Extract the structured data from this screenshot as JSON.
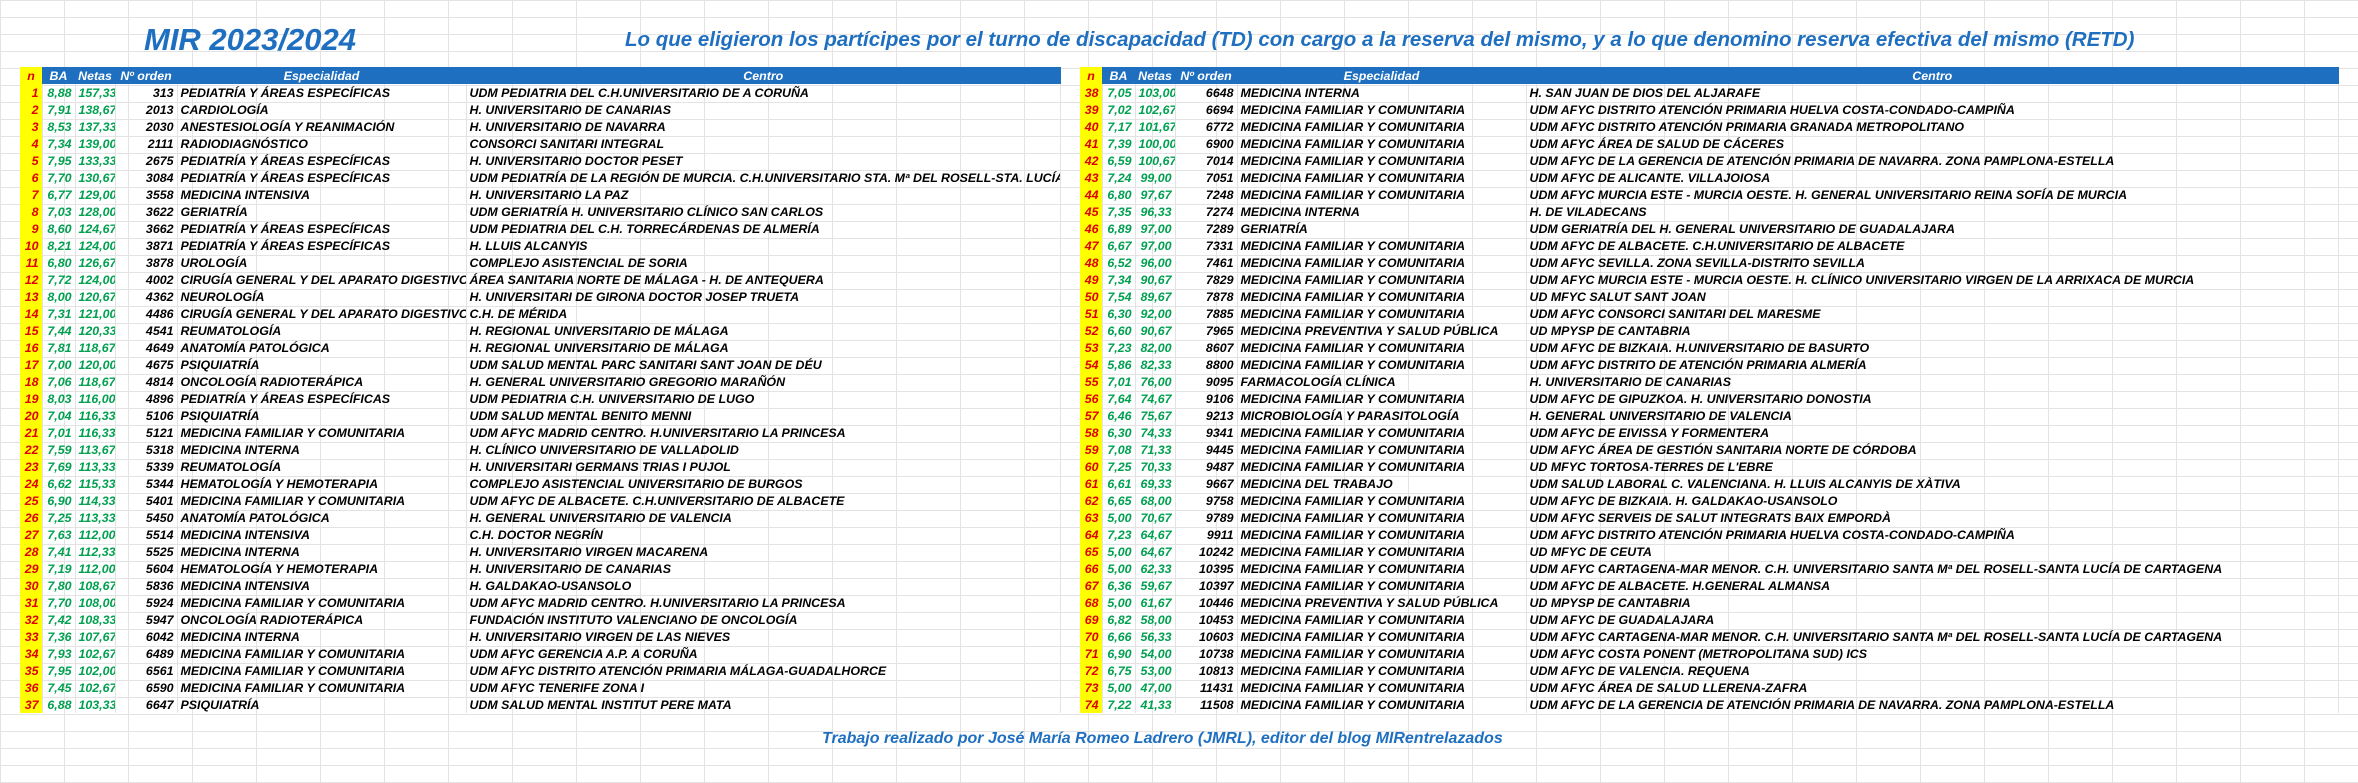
{
  "title": "MIR 2023/2024",
  "subtitle": "Lo que eligieron los partícipes por el turno de discapacidad (TD) con cargo a la reserva del mismo, y a lo que denomino reserva efectiva del mismo (RETD)",
  "footer": "Trabajo realizado por José María Romeo Ladrero (JMRL), editor del blog MIRentrelazados",
  "headers": {
    "n": "n",
    "ba": "BA",
    "netas": "Netas",
    "orden": "Nº orden",
    "especialidad": "Especialidad",
    "centro": "Centro"
  },
  "colors": {
    "header_bg": "#1f6fc0",
    "index_bg": "#ffff00",
    "index_text": "#e00000",
    "score_text": "#00a050",
    "title_text": "#1f6fc0"
  },
  "left_rows": [
    [
      "1",
      "8,88",
      "157,33",
      "313",
      "PEDIATRÍA Y ÁREAS ESPECÍFICAS",
      "UDM PEDIATRIA DEL C.H.UNIVERSITARIO DE A CORUÑA"
    ],
    [
      "2",
      "7,91",
      "138,67",
      "2013",
      "CARDIOLOGÍA",
      "H. UNIVERSITARIO DE CANARIAS"
    ],
    [
      "3",
      "8,53",
      "137,33",
      "2030",
      "ANESTESIOLOGÍA Y REANIMACIÓN",
      "H. UNIVERSITARIO DE NAVARRA"
    ],
    [
      "4",
      "7,34",
      "139,00",
      "2111",
      "RADIODIAGNÓSTICO",
      "CONSORCI SANITARI INTEGRAL"
    ],
    [
      "5",
      "7,95",
      "133,33",
      "2675",
      "PEDIATRÍA Y ÁREAS ESPECÍFICAS",
      "H. UNIVERSITARIO DOCTOR PESET"
    ],
    [
      "6",
      "7,70",
      "130,67",
      "3084",
      "PEDIATRÍA Y ÁREAS ESPECÍFICAS",
      "UDM PEDIATRÍA DE LA REGIÓN DE MURCIA. C.H.UNIVERSITARIO STA. Mª DEL ROSELL-STA. LUCÍA"
    ],
    [
      "7",
      "6,77",
      "129,00",
      "3558",
      "MEDICINA INTENSIVA",
      "H. UNIVERSITARIO LA PAZ"
    ],
    [
      "8",
      "7,03",
      "128,00",
      "3622",
      "GERIATRÍA",
      "UDM GERIATRÍA H. UNIVERSITARIO CLÍNICO SAN CARLOS"
    ],
    [
      "9",
      "8,60",
      "124,67",
      "3662",
      "PEDIATRÍA Y ÁREAS ESPECÍFICAS",
      "UDM PEDIATRIA DEL C.H. TORRECÁRDENAS DE ALMERÍA"
    ],
    [
      "10",
      "8,21",
      "124,00",
      "3871",
      "PEDIATRÍA Y ÁREAS ESPECÍFICAS",
      "H. LLUIS ALCANYIS"
    ],
    [
      "11",
      "6,80",
      "126,67",
      "3878",
      "UROLOGÍA",
      "COMPLEJO ASISTENCIAL DE SORIA"
    ],
    [
      "12",
      "7,72",
      "124,00",
      "4002",
      "CIRUGÍA GENERAL Y DEL APARATO DIGESTIVO",
      "ÁREA SANITARIA NORTE DE MÁLAGA - H. DE ANTEQUERA"
    ],
    [
      "13",
      "8,00",
      "120,67",
      "4362",
      "NEUROLOGÍA",
      "H. UNIVERSITARI DE GIRONA DOCTOR JOSEP TRUETA"
    ],
    [
      "14",
      "7,31",
      "121,00",
      "4486",
      "CIRUGÍA GENERAL Y DEL APARATO DIGESTIVO",
      "C.H. DE MÉRIDA"
    ],
    [
      "15",
      "7,44",
      "120,33",
      "4541",
      "REUMATOLOGÍA",
      "H. REGIONAL UNIVERSITARIO DE MÁLAGA"
    ],
    [
      "16",
      "7,81",
      "118,67",
      "4649",
      "ANATOMÍA PATOLÓGICA",
      "H. REGIONAL UNIVERSITARIO DE MÁLAGA"
    ],
    [
      "17",
      "7,00",
      "120,00",
      "4675",
      "PSIQUIATRÍA",
      "UDM SALUD MENTAL PARC SANITARI SANT JOAN DE DÉU"
    ],
    [
      "18",
      "7,06",
      "118,67",
      "4814",
      "ONCOLOGÍA RADIOTERÁPICA",
      "H. GENERAL UNIVERSITARIO GREGORIO MARAÑÓN"
    ],
    [
      "19",
      "8,03",
      "116,00",
      "4896",
      "PEDIATRÍA Y ÁREAS ESPECÍFICAS",
      "UDM PEDIATRIA C.H. UNIVERSITARIO DE LUGO"
    ],
    [
      "20",
      "7,04",
      "116,33",
      "5106",
      "PSIQUIATRÍA",
      "UDM SALUD MENTAL BENITO MENNI"
    ],
    [
      "21",
      "7,01",
      "116,33",
      "5121",
      "MEDICINA FAMILIAR Y COMUNITARIA",
      "UDM AFYC MADRID CENTRO. H.UNIVERSITARIO LA PRINCESA"
    ],
    [
      "22",
      "7,59",
      "113,67",
      "5318",
      "MEDICINA INTERNA",
      "H. CLÍNICO UNIVERSITARIO DE VALLADOLID"
    ],
    [
      "23",
      "7,69",
      "113,33",
      "5339",
      "REUMATOLOGÍA",
      "H. UNIVERSITARI GERMANS TRIAS I PUJOL"
    ],
    [
      "24",
      "6,62",
      "115,33",
      "5344",
      "HEMATOLOGÍA Y HEMOTERAPIA",
      "COMPLEJO ASISTENCIAL UNIVERSITARIO DE BURGOS"
    ],
    [
      "25",
      "6,90",
      "114,33",
      "5401",
      "MEDICINA FAMILIAR Y COMUNITARIA",
      "UDM AFYC DE ALBACETE. C.H.UNIVERSITARIO DE ALBACETE"
    ],
    [
      "26",
      "7,25",
      "113,33",
      "5450",
      "ANATOMÍA PATOLÓGICA",
      "H. GENERAL UNIVERSITARIO DE VALENCIA"
    ],
    [
      "27",
      "7,63",
      "112,00",
      "5514",
      "MEDICINA INTENSIVA",
      "C.H. DOCTOR NEGRÍN"
    ],
    [
      "28",
      "7,41",
      "112,33",
      "5525",
      "MEDICINA INTERNA",
      "H. UNIVERSITARIO VIRGEN MACARENA"
    ],
    [
      "29",
      "7,19",
      "112,00",
      "5604",
      "HEMATOLOGÍA Y HEMOTERAPIA",
      "H. UNIVERSITARIO DE CANARIAS"
    ],
    [
      "30",
      "7,80",
      "108,67",
      "5836",
      "MEDICINA INTENSIVA",
      "H. GALDAKAO-USANSOLO"
    ],
    [
      "31",
      "7,70",
      "108,00",
      "5924",
      "MEDICINA FAMILIAR Y COMUNITARIA",
      "UDM AFYC MADRID CENTRO. H.UNIVERSITARIO LA PRINCESA"
    ],
    [
      "32",
      "7,42",
      "108,33",
      "5947",
      "ONCOLOGÍA RADIOTERÁPICA",
      "FUNDACIÓN INSTITUTO VALENCIANO DE ONCOLOGÍA"
    ],
    [
      "33",
      "7,36",
      "107,67",
      "6042",
      "MEDICINA INTERNA",
      "H. UNIVERSITARIO VIRGEN DE LAS NIEVES"
    ],
    [
      "34",
      "7,93",
      "102,67",
      "6489",
      "MEDICINA FAMILIAR Y COMUNITARIA",
      "UDM AFYC GERENCIA A.P. A CORUÑA"
    ],
    [
      "35",
      "7,95",
      "102,00",
      "6561",
      "MEDICINA FAMILIAR Y COMUNITARIA",
      "UDM AFYC DISTRITO ATENCIÓN PRIMARIA MÁLAGA-GUADALHORCE"
    ],
    [
      "36",
      "7,45",
      "102,67",
      "6590",
      "MEDICINA FAMILIAR Y COMUNITARIA",
      "UDM AFYC TENERIFE ZONA I"
    ],
    [
      "37",
      "6,88",
      "103,33",
      "6647",
      "PSIQUIATRÍA",
      "UDM SALUD MENTAL INSTITUT PERE MATA"
    ]
  ],
  "right_rows": [
    [
      "38",
      "7,05",
      "103,00",
      "6648",
      "MEDICINA INTERNA",
      "H. SAN JUAN DE DIOS DEL ALJARAFE"
    ],
    [
      "39",
      "7,02",
      "102,67",
      "6694",
      "MEDICINA FAMILIAR Y COMUNITARIA",
      "UDM AFYC DISTRITO ATENCIÓN PRIMARIA HUELVA COSTA-CONDADO-CAMPIÑA"
    ],
    [
      "40",
      "7,17",
      "101,67",
      "6772",
      "MEDICINA FAMILIAR Y COMUNITARIA",
      "UDM AFYC DISTRITO ATENCIÓN PRIMARIA GRANADA METROPOLITANO"
    ],
    [
      "41",
      "7,39",
      "100,00",
      "6900",
      "MEDICINA FAMILIAR Y COMUNITARIA",
      "UDM AFYC ÁREA DE SALUD DE CÁCERES"
    ],
    [
      "42",
      "6,59",
      "100,67",
      "7014",
      "MEDICINA FAMILIAR Y COMUNITARIA",
      "UDM AFYC DE LA GERENCIA DE ATENCIÓN PRIMARIA DE NAVARRA. ZONA PAMPLONA-ESTELLA"
    ],
    [
      "43",
      "7,24",
      "99,00",
      "7051",
      "MEDICINA FAMILIAR Y COMUNITARIA",
      "UDM AFYC DE ALICANTE. VILLAJOIOSA"
    ],
    [
      "44",
      "6,80",
      "97,67",
      "7248",
      "MEDICINA FAMILIAR Y COMUNITARIA",
      "UDM AFYC MURCIA ESTE - MURCIA OESTE. H. GENERAL UNIVERSITARIO REINA SOFÍA DE MURCIA"
    ],
    [
      "45",
      "7,35",
      "96,33",
      "7274",
      "MEDICINA INTERNA",
      "H. DE VILADECANS"
    ],
    [
      "46",
      "6,89",
      "97,00",
      "7289",
      "GERIATRÍA",
      "UDM GERIATRÍA DEL H. GENERAL UNIVERSITARIO DE GUADALAJARA"
    ],
    [
      "47",
      "6,67",
      "97,00",
      "7331",
      "MEDICINA FAMILIAR Y COMUNITARIA",
      "UDM AFYC DE ALBACETE. C.H.UNIVERSITARIO DE ALBACETE"
    ],
    [
      "48",
      "6,52",
      "96,00",
      "7461",
      "MEDICINA FAMILIAR Y COMUNITARIA",
      "UDM AFYC SEVILLA. ZONA SEVILLA-DISTRITO SEVILLA"
    ],
    [
      "49",
      "7,34",
      "90,67",
      "7829",
      "MEDICINA FAMILIAR Y COMUNITARIA",
      "UDM AFYC MURCIA ESTE - MURCIA OESTE. H. CLÍNICO UNIVERSITARIO VIRGEN DE LA ARRIXACA DE MURCIA"
    ],
    [
      "50",
      "7,54",
      "89,67",
      "7878",
      "MEDICINA FAMILIAR Y COMUNITARIA",
      "UD MFYC SALUT SANT JOAN"
    ],
    [
      "51",
      "6,30",
      "92,00",
      "7885",
      "MEDICINA FAMILIAR Y COMUNITARIA",
      "UDM AFYC CONSORCI SANITARI DEL MARESME"
    ],
    [
      "52",
      "6,60",
      "90,67",
      "7965",
      "MEDICINA PREVENTIVA Y SALUD PÚBLICA",
      "UD MPYSP DE CANTABRIA"
    ],
    [
      "53",
      "7,23",
      "82,00",
      "8607",
      "MEDICINA FAMILIAR Y COMUNITARIA",
      "UDM AFYC DE BIZKAIA. H.UNIVERSITARIO DE BASURTO"
    ],
    [
      "54",
      "5,86",
      "82,33",
      "8800",
      "MEDICINA FAMILIAR Y COMUNITARIA",
      "UDM AFYC DISTRITO DE ATENCIÓN PRIMARIA ALMERÍA"
    ],
    [
      "55",
      "7,01",
      "76,00",
      "9095",
      "FARMACOLOGÍA CLÍNICA",
      "H. UNIVERSITARIO DE CANARIAS"
    ],
    [
      "56",
      "7,64",
      "74,67",
      "9106",
      "MEDICINA FAMILIAR Y COMUNITARIA",
      "UDM AFYC DE GIPUZKOA. H. UNIVERSITARIO DONOSTIA"
    ],
    [
      "57",
      "6,46",
      "75,67",
      "9213",
      "MICROBIOLOGÍA Y PARASITOLOGÍA",
      "H. GENERAL UNIVERSITARIO DE VALENCIA"
    ],
    [
      "58",
      "6,30",
      "74,33",
      "9341",
      "MEDICINA FAMILIAR Y COMUNITARIA",
      "UDM AFYC DE EIVISSA Y FORMENTERA"
    ],
    [
      "59",
      "7,08",
      "71,33",
      "9445",
      "MEDICINA FAMILIAR Y COMUNITARIA",
      "UDM AFYC ÁREA DE GESTIÓN SANITARIA NORTE DE CÓRDOBA"
    ],
    [
      "60",
      "7,25",
      "70,33",
      "9487",
      "MEDICINA FAMILIAR Y COMUNITARIA",
      "UD MFYC TORTOSA-TERRES DE L'EBRE"
    ],
    [
      "61",
      "6,61",
      "69,33",
      "9667",
      "MEDICINA DEL TRABAJO",
      "UDM SALUD LABORAL C. VALENCIANA. H. LLUIS ALCANYIS DE XÀTIVA"
    ],
    [
      "62",
      "6,65",
      "68,00",
      "9758",
      "MEDICINA FAMILIAR Y COMUNITARIA",
      "UDM AFYC DE BIZKAIA. H. GALDAKAO-USANSOLO"
    ],
    [
      "63",
      "5,00",
      "70,67",
      "9789",
      "MEDICINA FAMILIAR Y COMUNITARIA",
      "UDM AFYC SERVEIS DE SALUT INTEGRATS BAIX EMPORDÀ"
    ],
    [
      "64",
      "7,23",
      "64,67",
      "9911",
      "MEDICINA FAMILIAR Y COMUNITARIA",
      "UDM AFYC DISTRITO ATENCIÓN PRIMARIA HUELVA COSTA-CONDADO-CAMPIÑA"
    ],
    [
      "65",
      "5,00",
      "64,67",
      "10242",
      "MEDICINA FAMILIAR Y COMUNITARIA",
      "UD MFYC DE CEUTA"
    ],
    [
      "66",
      "5,00",
      "62,33",
      "10395",
      "MEDICINA FAMILIAR Y COMUNITARIA",
      "UDM AFYC CARTAGENA-MAR MENOR. C.H. UNIVERSITARIO SANTA Mª DEL ROSELL-SANTA LUCÍA DE CARTAGENA"
    ],
    [
      "67",
      "6,36",
      "59,67",
      "10397",
      "MEDICINA FAMILIAR Y COMUNITARIA",
      "UDM AFYC DE ALBACETE. H.GENERAL ALMANSA"
    ],
    [
      "68",
      "5,00",
      "61,67",
      "10446",
      "MEDICINA PREVENTIVA Y SALUD PÚBLICA",
      "UD MPYSP DE CANTABRIA"
    ],
    [
      "69",
      "6,82",
      "58,00",
      "10453",
      "MEDICINA FAMILIAR Y COMUNITARIA",
      "UDM AFYC DE GUADALAJARA"
    ],
    [
      "70",
      "6,66",
      "56,33",
      "10603",
      "MEDICINA FAMILIAR Y COMUNITARIA",
      "UDM AFYC CARTAGENA-MAR MENOR. C.H. UNIVERSITARIO SANTA Mª DEL ROSELL-SANTA LUCÍA DE CARTAGENA"
    ],
    [
      "71",
      "6,90",
      "54,00",
      "10738",
      "MEDICINA FAMILIAR Y COMUNITARIA",
      "UDM AFYC COSTA PONENT (METROPOLITANA SUD) ICS"
    ],
    [
      "72",
      "6,75",
      "53,00",
      "10813",
      "MEDICINA FAMILIAR Y COMUNITARIA",
      "UDM AFYC DE VALENCIA. REQUENA"
    ],
    [
      "73",
      "5,00",
      "47,00",
      "11431",
      "MEDICINA FAMILIAR Y COMUNITARIA",
      "UDM AFYC ÁREA DE SALUD LLERENA-ZAFRA"
    ],
    [
      "74",
      "7,22",
      "41,33",
      "11508",
      "MEDICINA FAMILIAR Y COMUNITARIA",
      "UDM AFYC DE LA GERENCIA DE ATENCIÓN PRIMARIA DE NAVARRA. ZONA PAMPLONA-ESTELLA"
    ]
  ]
}
